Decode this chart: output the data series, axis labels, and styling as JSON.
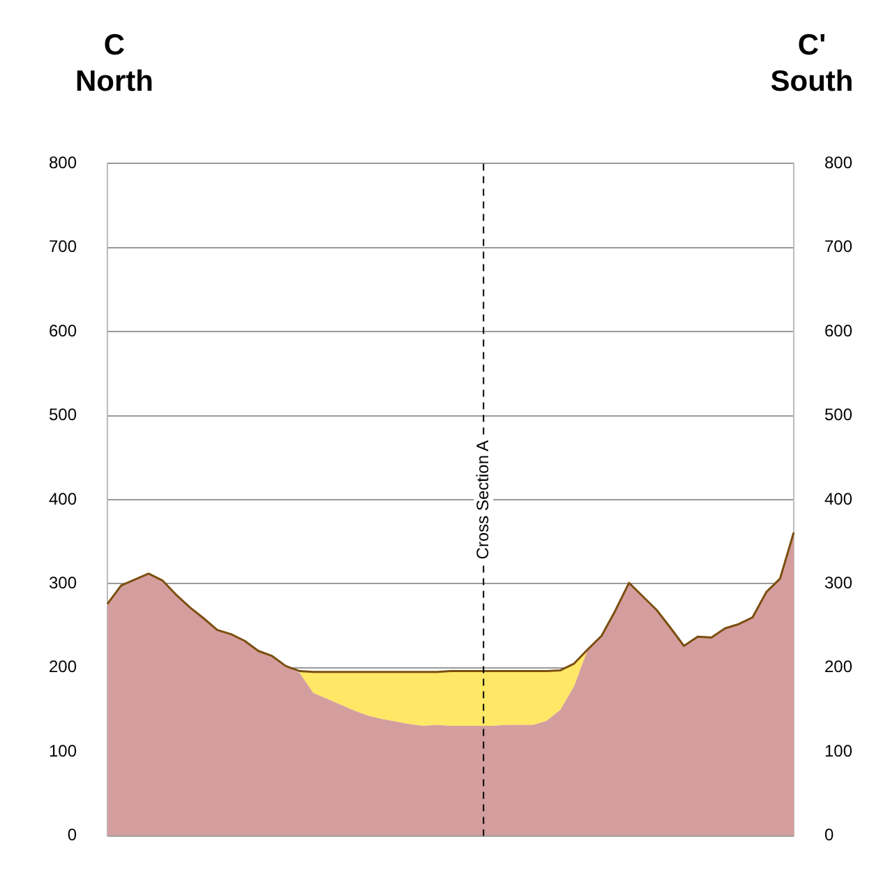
{
  "chart_data": {
    "type": "area",
    "categories": [
      null,
      null,
      null,
      null,
      null,
      null,
      null,
      null,
      null,
      null,
      null,
      null,
      null,
      null,
      null,
      null,
      null,
      null,
      null,
      null,
      null,
      null,
      null,
      null,
      null,
      null,
      null,
      null,
      null,
      null,
      null,
      null,
      null,
      null,
      null,
      null,
      null,
      null,
      null,
      null,
      null,
      null,
      null,
      null,
      null,
      null,
      null,
      null,
      null,
      null,
      null
    ],
    "series": [
      {
        "color": "#d59e9e",
        "values": [
          276,
          298,
          305,
          312,
          304,
          287,
          272,
          259,
          245,
          240,
          232,
          220,
          214,
          202,
          194,
          170,
          163,
          156,
          149,
          143,
          139,
          136,
          133,
          131,
          132,
          131,
          131,
          131,
          131,
          132,
          132,
          132,
          137,
          150,
          178,
          222,
          238,
          268,
          301,
          285,
          269,
          248,
          226,
          237,
          236,
          247,
          252,
          260,
          290,
          306,
          361
        ]
      },
      {
        "color": "#ffe866",
        "values": [
          null,
          null,
          null,
          null,
          null,
          null,
          null,
          null,
          null,
          null,
          null,
          null,
          null,
          null,
          196,
          195,
          195,
          195,
          195,
          195,
          195,
          195,
          195,
          195,
          195,
          196,
          196,
          196,
          196,
          196,
          196,
          196,
          196,
          197,
          205,
          222,
          null,
          null,
          null,
          null,
          null,
          null,
          null,
          null,
          null,
          null,
          null,
          null,
          null,
          null,
          null
        ]
      },
      {
        "type": "line",
        "color": "#7b4f10",
        "values": [
          276,
          298,
          305,
          312,
          304,
          287,
          272,
          259,
          245,
          240,
          232,
          220,
          214,
          202,
          196,
          195,
          195,
          195,
          195,
          195,
          195,
          195,
          195,
          195,
          195,
          196,
          196,
          196,
          196,
          196,
          196,
          196,
          196,
          197,
          205,
          222,
          238,
          268,
          301,
          285,
          269,
          248,
          226,
          237,
          236,
          247,
          252,
          260,
          290,
          306,
          361
        ]
      }
    ],
    "ylim": [
      0,
      800
    ],
    "yticks": [
      0,
      100,
      200,
      300,
      400,
      500,
      600,
      700,
      800
    ],
    "y2lim": [
      0,
      800
    ],
    "y2ticks": [
      0,
      100,
      200,
      300,
      400,
      500,
      600,
      700,
      800
    ],
    "grid": "y",
    "annotations": [
      "C",
      "North",
      "C'",
      "South",
      "Cross Section A"
    ]
  }
}
